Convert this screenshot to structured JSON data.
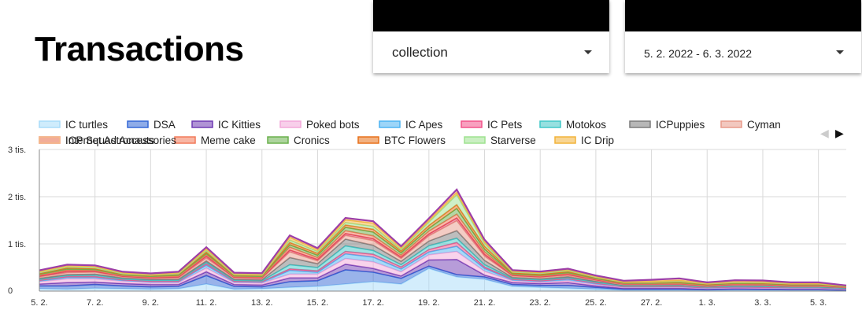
{
  "page": {
    "title": "Transactions"
  },
  "filters": {
    "collection": {
      "value": "collection"
    },
    "date_range": {
      "value": "5. 2. 2022 - 6. 3. 2022"
    }
  },
  "chart_data": {
    "type": "area",
    "stacked": true,
    "x": [
      "5. 2.",
      "6. 2.",
      "7. 2.",
      "8. 2.",
      "9. 2.",
      "10. 2.",
      "11. 2.",
      "12. 2.",
      "13. 2.",
      "14. 2.",
      "15. 2.",
      "16. 2.",
      "17. 2.",
      "18. 2.",
      "19. 2.",
      "20. 2.",
      "21. 2.",
      "22. 2.",
      "23. 2.",
      "24. 2.",
      "25. 2.",
      "26. 2.",
      "27. 2.",
      "28. 2.",
      "1. 3.",
      "2. 3.",
      "3. 3.",
      "4. 3.",
      "5. 3.",
      "6. 3."
    ],
    "x_tick_labels": [
      "5. 2.",
      "7. 2.",
      "9. 2.",
      "11. 2.",
      "13. 2.",
      "15. 2.",
      "17. 2.",
      "19. 2.",
      "21. 2.",
      "23. 2.",
      "25. 2.",
      "27. 2.",
      "1. 3.",
      "3. 3.",
      "5. 3."
    ],
    "y_tick_labels": [
      "0",
      "1 tis.",
      "2 tis.",
      "3 tis."
    ],
    "ylim": [
      0,
      3000
    ],
    "y_ticks": [
      0,
      1000,
      2000,
      3000
    ],
    "grid": true,
    "legend_position": "top",
    "series": [
      {
        "name": "IC turtles",
        "color": "#a8dcfa",
        "values": [
          50,
          40,
          60,
          50,
          40,
          50,
          150,
          40,
          50,
          80,
          100,
          150,
          200,
          150,
          480,
          300,
          250,
          100,
          80,
          60,
          40,
          20,
          20,
          20,
          15,
          20,
          20,
          15,
          15,
          10
        ]
      },
      {
        "name": "DSA",
        "color": "#3367d6",
        "values": [
          60,
          70,
          80,
          60,
          50,
          50,
          180,
          60,
          40,
          120,
          120,
          300,
          200,
          120,
          50,
          50,
          50,
          40,
          40,
          60,
          40,
          20,
          20,
          20,
          15,
          20,
          15,
          15,
          15,
          10
        ]
      },
      {
        "name": "IC Kitties",
        "color": "#6f3ab3",
        "values": [
          40,
          70,
          50,
          50,
          50,
          40,
          80,
          40,
          40,
          80,
          60,
          120,
          80,
          50,
          130,
          320,
          40,
          40,
          40,
          60,
          30,
          20,
          20,
          20,
          15,
          15,
          15,
          15,
          15,
          10
        ]
      },
      {
        "name": "Poked bots",
        "color": "#f2a7d9",
        "values": [
          50,
          80,
          70,
          50,
          40,
          40,
          80,
          40,
          40,
          80,
          80,
          120,
          140,
          90,
          110,
          170,
          80,
          40,
          30,
          40,
          30,
          20,
          20,
          25,
          15,
          20,
          20,
          15,
          15,
          10
        ]
      },
      {
        "name": "IC Apes",
        "color": "#4db3f2",
        "values": [
          20,
          30,
          30,
          20,
          20,
          20,
          60,
          20,
          20,
          80,
          40,
          100,
          100,
          60,
          60,
          110,
          60,
          20,
          20,
          30,
          20,
          10,
          10,
          10,
          10,
          10,
          10,
          10,
          10,
          5
        ]
      },
      {
        "name": "IC Pets",
        "color": "#f2528a",
        "values": [
          10,
          20,
          20,
          10,
          10,
          10,
          30,
          10,
          10,
          30,
          30,
          50,
          60,
          40,
          50,
          80,
          30,
          10,
          10,
          15,
          10,
          5,
          5,
          5,
          5,
          5,
          5,
          5,
          5,
          5
        ]
      },
      {
        "name": "Motokos",
        "color": "#41c7c7",
        "values": [
          20,
          20,
          30,
          20,
          20,
          20,
          30,
          20,
          20,
          90,
          70,
          120,
          80,
          50,
          80,
          90,
          50,
          20,
          20,
          20,
          20,
          15,
          15,
          15,
          10,
          15,
          15,
          10,
          10,
          10
        ]
      },
      {
        "name": "ICPuppies",
        "color": "#7b7b7b",
        "values": [
          20,
          20,
          20,
          20,
          20,
          20,
          30,
          20,
          20,
          150,
          80,
          140,
          110,
          70,
          100,
          160,
          90,
          20,
          20,
          20,
          20,
          15,
          15,
          15,
          10,
          15,
          15,
          10,
          10,
          10
        ]
      },
      {
        "name": "Cyman",
        "color": "#e89a8a",
        "values": [
          30,
          40,
          40,
          20,
          20,
          30,
          60,
          30,
          30,
          120,
          60,
          80,
          100,
          60,
          110,
          210,
          90,
          30,
          30,
          30,
          20,
          15,
          15,
          15,
          10,
          15,
          15,
          10,
          10,
          10
        ]
      },
      {
        "name": "Internet Astronauts",
        "color": "#e0445f",
        "values": [
          20,
          30,
          20,
          15,
          15,
          20,
          40,
          15,
          15,
          40,
          30,
          40,
          40,
          30,
          40,
          60,
          40,
          15,
          15,
          20,
          10,
          10,
          10,
          10,
          10,
          10,
          10,
          10,
          10,
          5
        ]
      },
      {
        "name": "Meme cake",
        "color": "#f27a5a",
        "values": [
          20,
          25,
          20,
          15,
          15,
          20,
          30,
          15,
          15,
          60,
          40,
          60,
          60,
          40,
          60,
          80,
          50,
          15,
          15,
          20,
          15,
          10,
          10,
          10,
          10,
          10,
          10,
          10,
          10,
          5
        ]
      },
      {
        "name": "Cronics",
        "color": "#6ab04c",
        "values": [
          20,
          25,
          20,
          15,
          15,
          20,
          30,
          15,
          15,
          50,
          50,
          70,
          80,
          50,
          60,
          120,
          60,
          20,
          20,
          20,
          15,
          10,
          10,
          15,
          10,
          10,
          10,
          10,
          10,
          5
        ]
      },
      {
        "name": "BTC Flowers",
        "color": "#e8711a",
        "values": [
          20,
          25,
          20,
          15,
          15,
          20,
          30,
          15,
          15,
          50,
          40,
          50,
          60,
          40,
          60,
          80,
          60,
          20,
          20,
          20,
          15,
          10,
          10,
          15,
          10,
          10,
          10,
          10,
          10,
          5
        ]
      },
      {
        "name": "Starverse",
        "color": "#9ee28f",
        "values": [
          10,
          15,
          15,
          10,
          10,
          10,
          30,
          10,
          10,
          50,
          40,
          50,
          60,
          30,
          70,
          210,
          60,
          15,
          15,
          20,
          10,
          10,
          10,
          15,
          10,
          10,
          10,
          10,
          10,
          5
        ]
      },
      {
        "name": "IC Drip",
        "color": "#f2b33a",
        "values": [
          30,
          30,
          30,
          20,
          15,
          20,
          40,
          20,
          20,
          60,
          40,
          60,
          70,
          40,
          40,
          50,
          40,
          20,
          20,
          20,
          15,
          10,
          20,
          20,
          10,
          15,
          15,
          10,
          10,
          5
        ]
      },
      {
        "name": "ICP Squad Accessories",
        "color": "#f5c08c",
        "values": [
          20,
          20,
          20,
          20,
          20,
          20,
          30,
          20,
          20,
          40,
          30,
          40,
          40,
          30,
          40,
          60,
          40,
          20,
          20,
          20,
          20,
          20,
          30,
          40,
          20,
          30,
          30,
          20,
          20,
          10
        ]
      }
    ],
    "total_outline_color": "#9c3ea8"
  },
  "legend_nav": {
    "prev_icon": "triangle-left-icon",
    "next_icon": "triangle-right-icon",
    "prev_glyph": "◀",
    "next_glyph": "▶"
  }
}
